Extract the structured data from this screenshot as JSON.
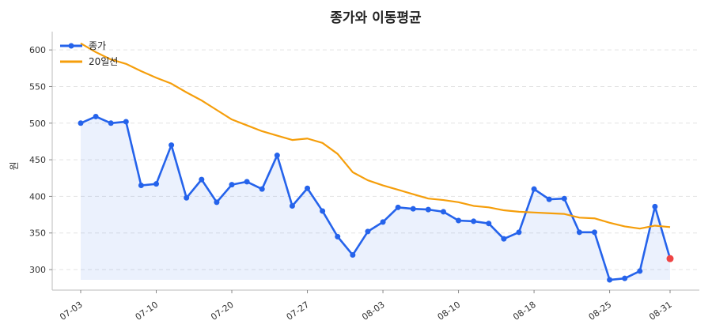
{
  "chart_data": {
    "type": "line",
    "title": "종가와 이동평균",
    "ylabel": "원",
    "xlabel": "",
    "ylim": [
      272,
      625
    ],
    "y_ticks": [
      300,
      350,
      400,
      450,
      500,
      550,
      600
    ],
    "grid": "horizontal-dashed",
    "legend_placement": "top-left",
    "x_tick_labels": [
      {
        "label": "07-03",
        "index": 0
      },
      {
        "label": "07-10",
        "index": 5
      },
      {
        "label": "07-20",
        "index": 10
      },
      {
        "label": "07-27",
        "index": 15
      },
      {
        "label": "08-03",
        "index": 20
      },
      {
        "label": "08-10",
        "index": 25
      },
      {
        "label": "08-18",
        "index": 30
      },
      {
        "label": "08-25",
        "index": 35
      },
      {
        "label": "08-31",
        "index": 39
      }
    ],
    "x_count": 40,
    "series": [
      {
        "name": "종가",
        "color": "#2563eb",
        "values": [
          500,
          509,
          500,
          502,
          415,
          417,
          470,
          398,
          423,
          392,
          416,
          420,
          410,
          456,
          387,
          411,
          380,
          345,
          320,
          352,
          365,
          385,
          383,
          382,
          379,
          367,
          366,
          363,
          342,
          351,
          410,
          396,
          397,
          351,
          351,
          286,
          288,
          298,
          386,
          315
        ]
      },
      {
        "name": "20일선",
        "color": "#f59e0b",
        "values": [
          609,
          597,
          587,
          581,
          571,
          562,
          554,
          542,
          531,
          518,
          505,
          497,
          489,
          483,
          477,
          479,
          473,
          458,
          433,
          422,
          415,
          409,
          403,
          397,
          395,
          392,
          387,
          385,
          381,
          379,
          378,
          377,
          376,
          371,
          370,
          364,
          359,
          356,
          360,
          358
        ]
      }
    ],
    "highlight_last_color": "#ef4444",
    "fill_baseline": 286
  }
}
